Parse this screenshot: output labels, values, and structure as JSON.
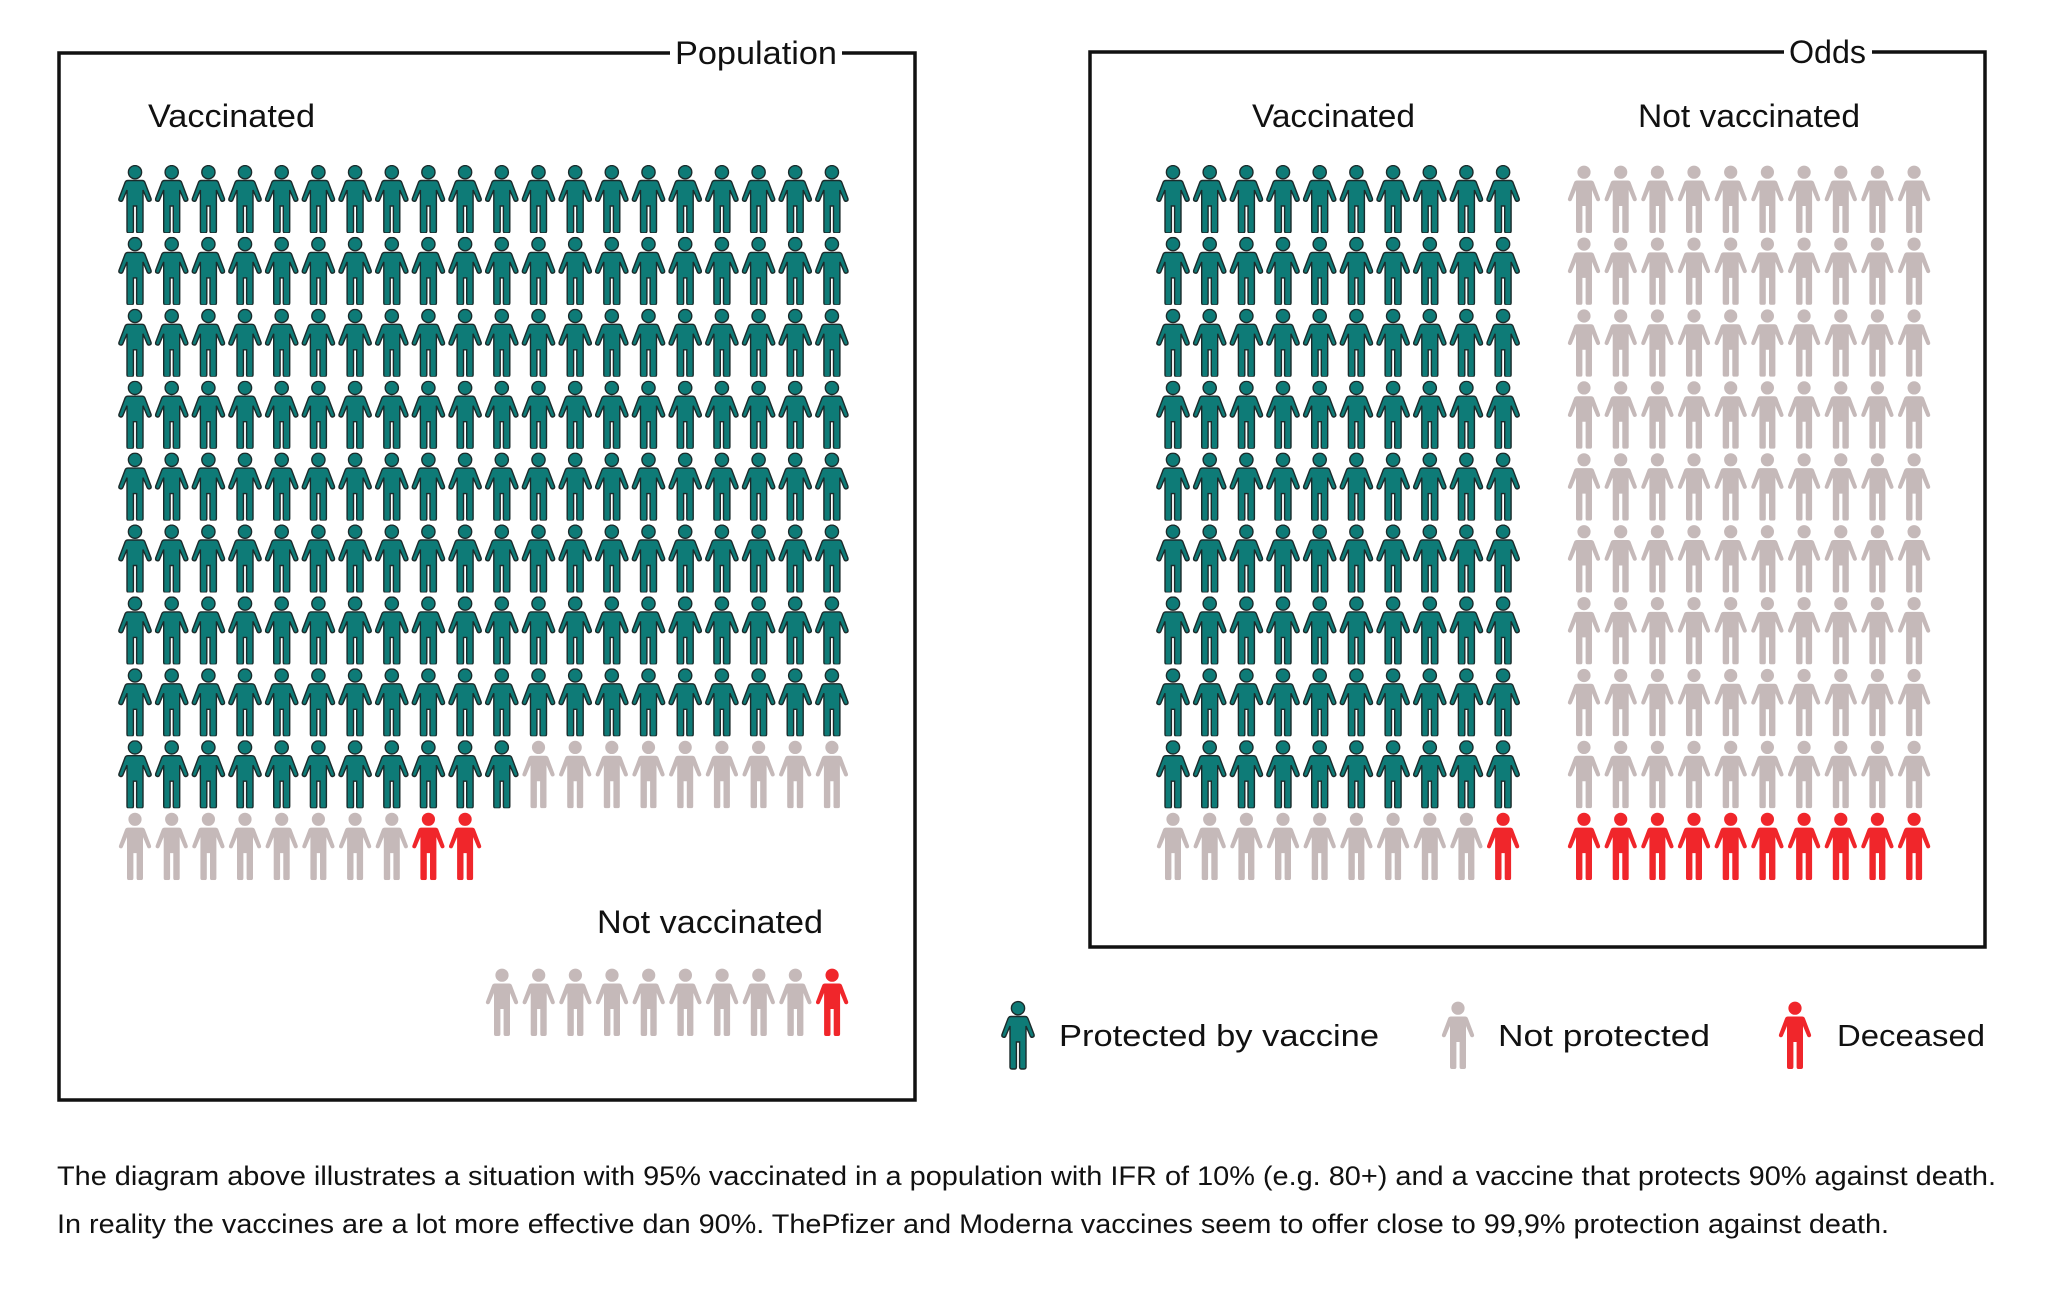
{
  "colors": {
    "protected": "#0e7b77",
    "protected_outline": "#1c2b2b",
    "not_protected": "#c5b9b9",
    "deceased": "#f0262b",
    "frame": "#111111",
    "text": "#111111"
  },
  "population_panel": {
    "title": "Population",
    "vaccinated_label": "Vaccinated",
    "not_vaccinated_label": "Not vaccinated",
    "vaccinated_grid": {
      "columns": 20,
      "rows": [
        {
          "protected": 20,
          "not_protected": 0,
          "deceased": 0
        },
        {
          "protected": 20,
          "not_protected": 0,
          "deceased": 0
        },
        {
          "protected": 20,
          "not_protected": 0,
          "deceased": 0
        },
        {
          "protected": 20,
          "not_protected": 0,
          "deceased": 0
        },
        {
          "protected": 20,
          "not_protected": 0,
          "deceased": 0
        },
        {
          "protected": 20,
          "not_protected": 0,
          "deceased": 0
        },
        {
          "protected": 20,
          "not_protected": 0,
          "deceased": 0
        },
        {
          "protected": 20,
          "not_protected": 0,
          "deceased": 0
        },
        {
          "protected": 11,
          "not_protected": 9,
          "deceased": 0
        },
        {
          "protected": 0,
          "not_protected": 8,
          "deceased": 2
        }
      ]
    },
    "not_vaccinated_grid": {
      "columns": 10,
      "rows": [
        {
          "protected": 0,
          "not_protected": 9,
          "deceased": 1
        }
      ]
    }
  },
  "odds_panel": {
    "title": "Odds",
    "vaccinated_label": "Vaccinated",
    "not_vaccinated_label": "Not vaccinated",
    "vaccinated_grid": {
      "columns": 10,
      "rows": [
        {
          "protected": 10,
          "not_protected": 0,
          "deceased": 0
        },
        {
          "protected": 10,
          "not_protected": 0,
          "deceased": 0
        },
        {
          "protected": 10,
          "not_protected": 0,
          "deceased": 0
        },
        {
          "protected": 10,
          "not_protected": 0,
          "deceased": 0
        },
        {
          "protected": 10,
          "not_protected": 0,
          "deceased": 0
        },
        {
          "protected": 10,
          "not_protected": 0,
          "deceased": 0
        },
        {
          "protected": 10,
          "not_protected": 0,
          "deceased": 0
        },
        {
          "protected": 10,
          "not_protected": 0,
          "deceased": 0
        },
        {
          "protected": 10,
          "not_protected": 0,
          "deceased": 0
        },
        {
          "protected": 0,
          "not_protected": 9,
          "deceased": 1
        }
      ]
    },
    "not_vaccinated_grid": {
      "columns": 10,
      "rows": [
        {
          "protected": 0,
          "not_protected": 10,
          "deceased": 0
        },
        {
          "protected": 0,
          "not_protected": 10,
          "deceased": 0
        },
        {
          "protected": 0,
          "not_protected": 10,
          "deceased": 0
        },
        {
          "protected": 0,
          "not_protected": 10,
          "deceased": 0
        },
        {
          "protected": 0,
          "not_protected": 10,
          "deceased": 0
        },
        {
          "protected": 0,
          "not_protected": 10,
          "deceased": 0
        },
        {
          "protected": 0,
          "not_protected": 10,
          "deceased": 0
        },
        {
          "protected": 0,
          "not_protected": 10,
          "deceased": 0
        },
        {
          "protected": 0,
          "not_protected": 10,
          "deceased": 0
        },
        {
          "protected": 0,
          "not_protected": 0,
          "deceased": 10
        }
      ]
    }
  },
  "legend": [
    {
      "key": "protected",
      "icon": "person-icon",
      "label": "Protected by vaccine"
    },
    {
      "key": "not_protected",
      "icon": "person-icon",
      "label": "Not protected"
    },
    {
      "key": "deceased",
      "icon": "person-icon",
      "label": "Deceased"
    }
  ],
  "caption": {
    "line1": "The diagram above illustrates a situation with 95% vaccinated in a population with IFR of 10% (e.g. 80+) and a vaccine that protects 90% against death.",
    "line2": "In reality the vaccines are a lot more effective dan 90%. ThePfizer and Moderna vaccines seem to offer close to 99,9% protection against death."
  }
}
